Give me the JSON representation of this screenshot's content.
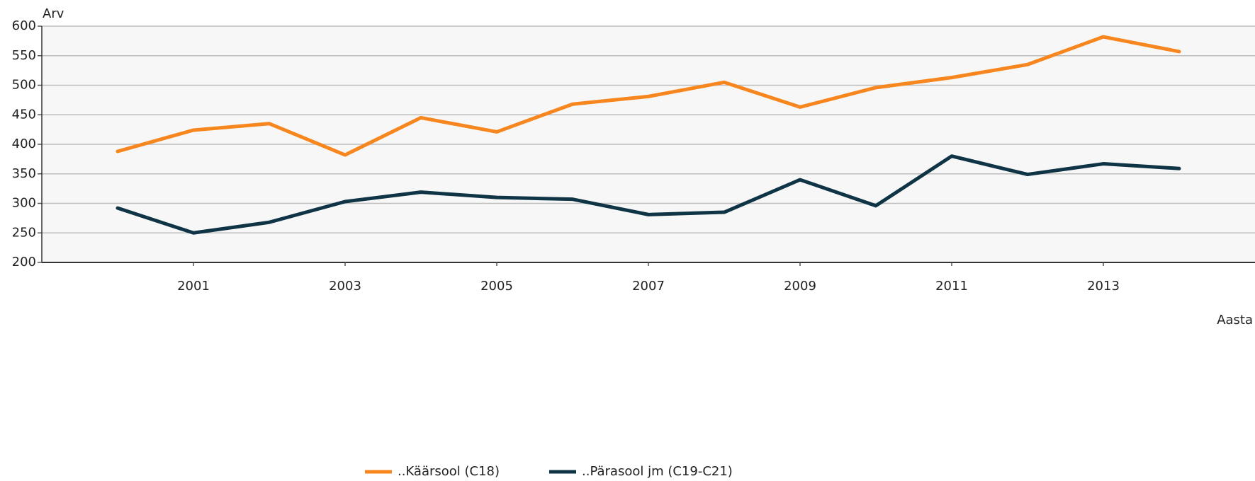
{
  "chart_data": {
    "type": "line",
    "y_label": "Arv",
    "x_label": "Aasta",
    "x": [
      2000,
      2001,
      2002,
      2003,
      2004,
      2005,
      2006,
      2007,
      2008,
      2009,
      2010,
      2011,
      2012,
      2013,
      2014
    ],
    "series": [
      {
        "name": "..Käärsool (C18)",
        "color": "#f7861e",
        "values": [
          388,
          424,
          435,
          382,
          445,
          421,
          468,
          481,
          505,
          463,
          496,
          513,
          535,
          582,
          557
        ]
      },
      {
        "name": "..Pärasool jm (C19-C21)",
        "color": "#0f3446",
        "values": [
          292,
          250,
          268,
          303,
          319,
          310,
          307,
          281,
          285,
          340,
          296,
          380,
          349,
          367,
          359
        ]
      }
    ],
    "xlim": [
      1999,
      2015
    ],
    "xticks": [
      2001,
      2003,
      2005,
      2007,
      2009,
      2011,
      2013
    ],
    "ylim": [
      200,
      600
    ],
    "yticks": [
      200,
      250,
      300,
      350,
      400,
      450,
      500,
      550,
      600
    ],
    "grid": true,
    "legend": "bottom"
  }
}
